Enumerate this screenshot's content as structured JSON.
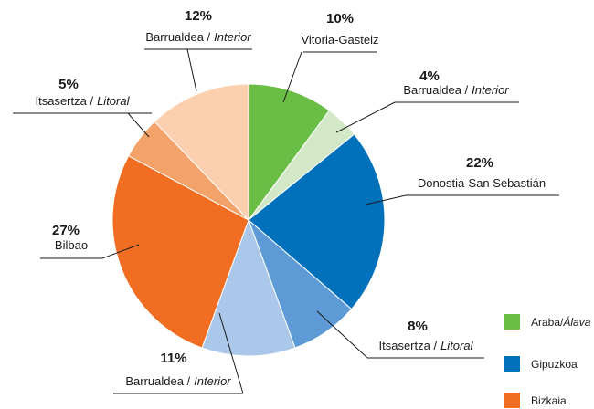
{
  "chart_data": {
    "type": "pie",
    "labels": [
      [
        "Vitoria-Gasteiz"
      ],
      [
        "Barrualdea /",
        "Interior"
      ],
      [
        "Donostia-San Sebastián"
      ],
      [
        "Itsasertza /",
        "Litoral"
      ],
      [
        "Barrualdea /",
        "Interior"
      ],
      [
        "Bilbao"
      ],
      [
        "Itsasertza /",
        "Litoral"
      ],
      [
        "Barrualdea /",
        "Interior"
      ]
    ],
    "values": [
      10,
      4,
      22,
      8,
      11,
      27,
      5,
      12
    ],
    "value_labels": [
      "10%",
      "4%",
      "22%",
      "8%",
      "11%",
      "27%",
      "5%",
      "12%"
    ],
    "colors": [
      "#6abd45",
      "#d3e8c6",
      "#0271bb",
      "#5e9bd6",
      "#abc7e9",
      "#f06d22",
      "#f3a26a",
      "#fcd0ae"
    ],
    "legend": [
      {
        "name": [
          "Araba/",
          "Álava"
        ],
        "color": "#6abd45"
      },
      {
        "name": [
          "Gipuzkoa"
        ],
        "color": "#0271bb"
      },
      {
        "name": [
          "Bizkaia"
        ],
        "color": "#f06d22"
      }
    ]
  }
}
